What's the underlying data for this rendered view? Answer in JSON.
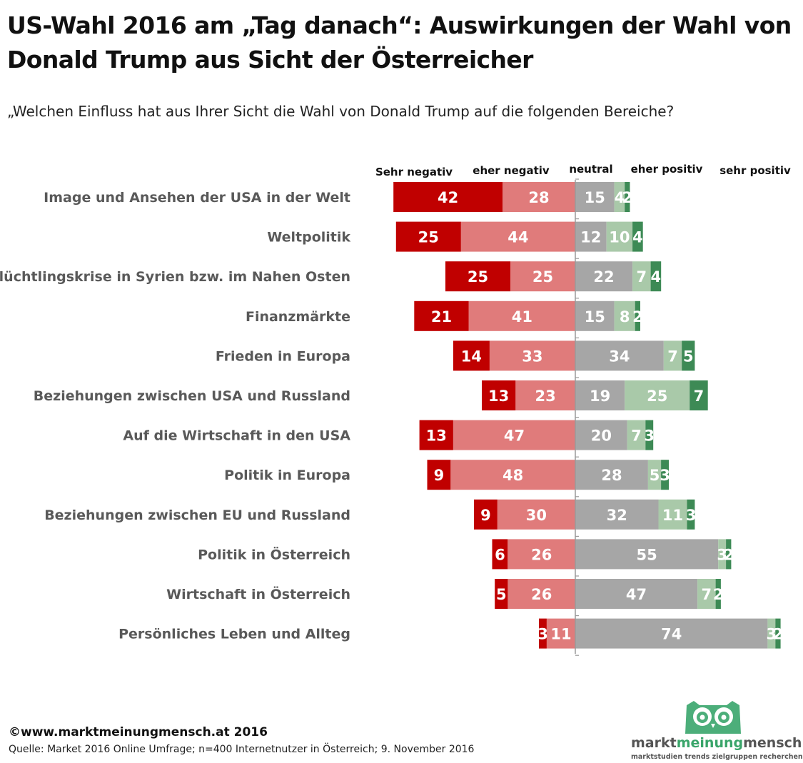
{
  "title": "US-Wahl 2016 am „Tag danach“: Auswirkungen der Wahl von Donald Trump aus Sicht der Österreicher",
  "subtitle": "„Welchen Einfluss hat aus Ihrer Sicht die Wahl von Donald Trump auf die folgenden Bereiche?",
  "footer": {
    "copyright": "©www.marktmeinungmensch.at 2016",
    "source": "Quelle: Market 2016 Online Umfrage; n=400 Internetnutzer in Österreich; 9. November 2016"
  },
  "logo": {
    "part1": "markt",
    "part2": "meinung",
    "part3": "mensch",
    "tagline": "marktstudien trends zielgruppen recherchen"
  },
  "colors": {
    "sehr_negativ": "#c00000",
    "eher_negativ": "#e07b7b",
    "neutral": "#a6a6a6",
    "eher_positiv": "#a9c9a9",
    "sehr_positiv": "#3d8a55"
  },
  "chart_data": {
    "type": "bar",
    "orientation": "horizontal-diverging",
    "series_names": [
      "Sehr negativ",
      "eher negativ",
      "neutral",
      "eher positiv",
      "sehr positiv"
    ],
    "categories": [
      "Image und Ansehen der USA in der Welt",
      "Weltpolitik",
      "Flüchtlingskrise in Syrien bzw. im Nahen Osten",
      "Finanzmärkte",
      "Frieden in Europa",
      "Beziehungen zwischen USA und Russland",
      "Auf die Wirtschaft in den USA",
      "Politik in Europa",
      "Beziehungen zwischen EU und Russland",
      "Politik in Österreich",
      "Wirtschaft in Österreich",
      "Persönliches Leben und Allteg"
    ],
    "values": [
      [
        42,
        28,
        15,
        4,
        2
      ],
      [
        25,
        44,
        12,
        10,
        4
      ],
      [
        25,
        25,
        22,
        7,
        4
      ],
      [
        21,
        41,
        15,
        8,
        2
      ],
      [
        14,
        33,
        34,
        7,
        5
      ],
      [
        13,
        23,
        19,
        25,
        7
      ],
      [
        13,
        47,
        20,
        7,
        3
      ],
      [
        9,
        48,
        28,
        5,
        3
      ],
      [
        9,
        30,
        32,
        11,
        3
      ],
      [
        6,
        26,
        55,
        3,
        2
      ],
      [
        5,
        26,
        47,
        7,
        2
      ],
      [
        3,
        11,
        74,
        3,
        2
      ]
    ]
  }
}
